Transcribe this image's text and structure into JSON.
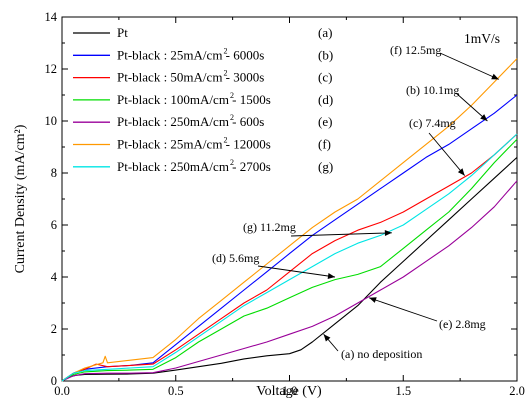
{
  "chart_data": {
    "type": "line",
    "xlabel": "Voltage (V)",
    "ylabel": "Current Density (mA/cm²)",
    "xlim": [
      0.0,
      2.0
    ],
    "ylim": [
      0,
      14
    ],
    "x_ticks": [
      0.0,
      0.5,
      1.0,
      1.5,
      2.0
    ],
    "x_tick_labels": [
      "0.0",
      "0.5",
      "1.0",
      "1.5",
      "2.0"
    ],
    "y_ticks": [
      0,
      2,
      4,
      6,
      8,
      10,
      12,
      14
    ],
    "y_tick_labels": [
      "0",
      "2",
      "4",
      "6",
      "8",
      "10",
      "12",
      "14"
    ],
    "grid": false,
    "legend_position": "top-left",
    "scan_rate_label": "1mV/s",
    "series": [
      {
        "name": "Pt",
        "legend_label": "Pt",
        "legend_tag": "(a)",
        "color": "#000000",
        "points": [
          [
            0.0,
            0.0
          ],
          [
            0.03,
            0.15
          ],
          [
            0.06,
            0.22
          ],
          [
            0.1,
            0.25
          ],
          [
            0.2,
            0.26
          ],
          [
            0.3,
            0.27
          ],
          [
            0.4,
            0.3
          ],
          [
            0.5,
            0.42
          ],
          [
            0.6,
            0.55
          ],
          [
            0.7,
            0.68
          ],
          [
            0.8,
            0.85
          ],
          [
            0.9,
            0.97
          ],
          [
            1.0,
            1.05
          ],
          [
            1.05,
            1.2
          ],
          [
            1.1,
            1.5
          ],
          [
            1.2,
            2.2
          ],
          [
            1.3,
            2.9
          ],
          [
            1.4,
            3.8
          ],
          [
            1.5,
            4.6
          ],
          [
            1.6,
            5.4
          ],
          [
            1.7,
            6.2
          ],
          [
            1.8,
            7.0
          ],
          [
            1.9,
            7.8
          ],
          [
            2.0,
            8.6
          ]
        ]
      },
      {
        "name": "Pt-black : 25mA/cm² - 6000s",
        "legend_label": "Pt-black : 25mA/cm  - 6000s",
        "legend_tag": "(b)",
        "color": "#0000ff",
        "points": [
          [
            0.0,
            0.0
          ],
          [
            0.05,
            0.3
          ],
          [
            0.1,
            0.45
          ],
          [
            0.2,
            0.55
          ],
          [
            0.3,
            0.6
          ],
          [
            0.4,
            0.7
          ],
          [
            0.5,
            1.4
          ],
          [
            0.6,
            2.1
          ],
          [
            0.7,
            2.8
          ],
          [
            0.8,
            3.5
          ],
          [
            0.9,
            4.2
          ],
          [
            1.0,
            4.9
          ],
          [
            1.1,
            5.6
          ],
          [
            1.2,
            6.2
          ],
          [
            1.3,
            6.8
          ],
          [
            1.4,
            7.4
          ],
          [
            1.5,
            8.0
          ],
          [
            1.6,
            8.6
          ],
          [
            1.7,
            9.1
          ],
          [
            1.8,
            9.7
          ],
          [
            1.9,
            10.3
          ],
          [
            2.0,
            11.0
          ]
        ]
      },
      {
        "name": "Pt-black : 50mA/cm² - 3000s",
        "legend_label": "Pt-black : 50mA/cm  - 3000s",
        "legend_tag": "(c)",
        "color": "#ff0000",
        "points": [
          [
            0.0,
            0.0
          ],
          [
            0.05,
            0.3
          ],
          [
            0.1,
            0.45
          ],
          [
            0.15,
            0.65
          ],
          [
            0.2,
            0.55
          ],
          [
            0.3,
            0.6
          ],
          [
            0.4,
            0.65
          ],
          [
            0.5,
            1.2
          ],
          [
            0.6,
            1.8
          ],
          [
            0.7,
            2.4
          ],
          [
            0.8,
            3.0
          ],
          [
            0.9,
            3.5
          ],
          [
            1.0,
            4.2
          ],
          [
            1.1,
            4.9
          ],
          [
            1.2,
            5.4
          ],
          [
            1.3,
            5.8
          ],
          [
            1.4,
            6.1
          ],
          [
            1.5,
            6.5
          ],
          [
            1.6,
            7.0
          ],
          [
            1.7,
            7.5
          ],
          [
            1.8,
            8.0
          ],
          [
            1.9,
            8.7
          ],
          [
            2.0,
            9.5
          ]
        ]
      },
      {
        "name": "Pt-black : 100mA/cm² - 1500s",
        "legend_label": "Pt-black : 100mA/cm  - 1500s",
        "legend_tag": "(d)",
        "color": "#00dd00",
        "points": [
          [
            0.0,
            0.0
          ],
          [
            0.05,
            0.25
          ],
          [
            0.1,
            0.35
          ],
          [
            0.2,
            0.4
          ],
          [
            0.3,
            0.42
          ],
          [
            0.4,
            0.45
          ],
          [
            0.5,
            0.9
          ],
          [
            0.6,
            1.5
          ],
          [
            0.7,
            2.0
          ],
          [
            0.8,
            2.5
          ],
          [
            0.9,
            2.8
          ],
          [
            1.0,
            3.2
          ],
          [
            1.1,
            3.6
          ],
          [
            1.2,
            3.9
          ],
          [
            1.3,
            4.1
          ],
          [
            1.4,
            4.4
          ],
          [
            1.5,
            5.1
          ],
          [
            1.6,
            5.8
          ],
          [
            1.7,
            6.5
          ],
          [
            1.8,
            7.4
          ],
          [
            1.9,
            8.4
          ],
          [
            2.0,
            9.3
          ]
        ]
      },
      {
        "name": "Pt-black : 250mA/cm² - 600s",
        "legend_label": "Pt-black : 250mA/cm  - 600s",
        "legend_tag": "(e)",
        "color": "#990099",
        "points": [
          [
            0.0,
            0.0
          ],
          [
            0.05,
            0.2
          ],
          [
            0.1,
            0.28
          ],
          [
            0.2,
            0.3
          ],
          [
            0.3,
            0.3
          ],
          [
            0.4,
            0.32
          ],
          [
            0.5,
            0.5
          ],
          [
            0.6,
            0.75
          ],
          [
            0.7,
            1.0
          ],
          [
            0.8,
            1.25
          ],
          [
            0.9,
            1.5
          ],
          [
            1.0,
            1.8
          ],
          [
            1.1,
            2.1
          ],
          [
            1.2,
            2.5
          ],
          [
            1.3,
            3.0
          ],
          [
            1.4,
            3.5
          ],
          [
            1.5,
            4.0
          ],
          [
            1.6,
            4.6
          ],
          [
            1.7,
            5.2
          ],
          [
            1.8,
            5.9
          ],
          [
            1.9,
            6.7
          ],
          [
            2.0,
            7.7
          ]
        ]
      },
      {
        "name": "Pt-black : 25mA/cm² - 12000s",
        "legend_label": "Pt-black : 25mA/cm  - 12000s",
        "legend_tag": "(f)",
        "color": "#ff9900",
        "points": [
          [
            0.0,
            0.0
          ],
          [
            0.05,
            0.3
          ],
          [
            0.1,
            0.5
          ],
          [
            0.18,
            0.7
          ],
          [
            0.19,
            0.95
          ],
          [
            0.2,
            0.7
          ],
          [
            0.3,
            0.8
          ],
          [
            0.4,
            0.9
          ],
          [
            0.5,
            1.6
          ],
          [
            0.6,
            2.4
          ],
          [
            0.7,
            3.1
          ],
          [
            0.8,
            3.8
          ],
          [
            0.9,
            4.5
          ],
          [
            1.0,
            5.2
          ],
          [
            1.1,
            5.9
          ],
          [
            1.2,
            6.5
          ],
          [
            1.3,
            7.0
          ],
          [
            1.4,
            7.7
          ],
          [
            1.5,
            8.4
          ],
          [
            1.6,
            9.1
          ],
          [
            1.7,
            9.8
          ],
          [
            1.8,
            10.6
          ],
          [
            1.9,
            11.5
          ],
          [
            2.0,
            12.4
          ]
        ]
      },
      {
        "name": "Pt-black : 250mA/cm² - 2700s",
        "legend_label": "Pt-black : 250mA/cm  - 2700s",
        "legend_tag": "(g)",
        "color": "#00e5e5",
        "points": [
          [
            0.0,
            0.0
          ],
          [
            0.05,
            0.3
          ],
          [
            0.1,
            0.4
          ],
          [
            0.2,
            0.45
          ],
          [
            0.3,
            0.5
          ],
          [
            0.4,
            0.55
          ],
          [
            0.5,
            1.1
          ],
          [
            0.6,
            1.7
          ],
          [
            0.7,
            2.3
          ],
          [
            0.8,
            2.9
          ],
          [
            0.9,
            3.4
          ],
          [
            1.0,
            3.9
          ],
          [
            1.1,
            4.4
          ],
          [
            1.2,
            4.9
          ],
          [
            1.3,
            5.3
          ],
          [
            1.4,
            5.6
          ],
          [
            1.5,
            6.0
          ],
          [
            1.6,
            6.6
          ],
          [
            1.7,
            7.2
          ],
          [
            1.8,
            7.9
          ],
          [
            1.9,
            8.7
          ],
          [
            2.0,
            9.5
          ]
        ]
      }
    ],
    "annotations": [
      {
        "text": "(f) 12.5mg",
        "target": [
          1.92,
          11.6
        ]
      },
      {
        "text": "(b) 10.1mg",
        "target": [
          1.87,
          10.0
        ]
      },
      {
        "text": "(c) 7.4mg",
        "target": [
          1.77,
          7.9
        ]
      },
      {
        "text": "(g) 11.2mg",
        "target": [
          1.45,
          5.7
        ]
      },
      {
        "text": "(d) 5.6mg",
        "target": [
          1.2,
          4.0
        ]
      },
      {
        "text": "(e) 2.8mg",
        "target": [
          1.35,
          3.2
        ]
      },
      {
        "text": "(a) no deposition",
        "target": [
          1.15,
          1.8
        ]
      }
    ]
  }
}
